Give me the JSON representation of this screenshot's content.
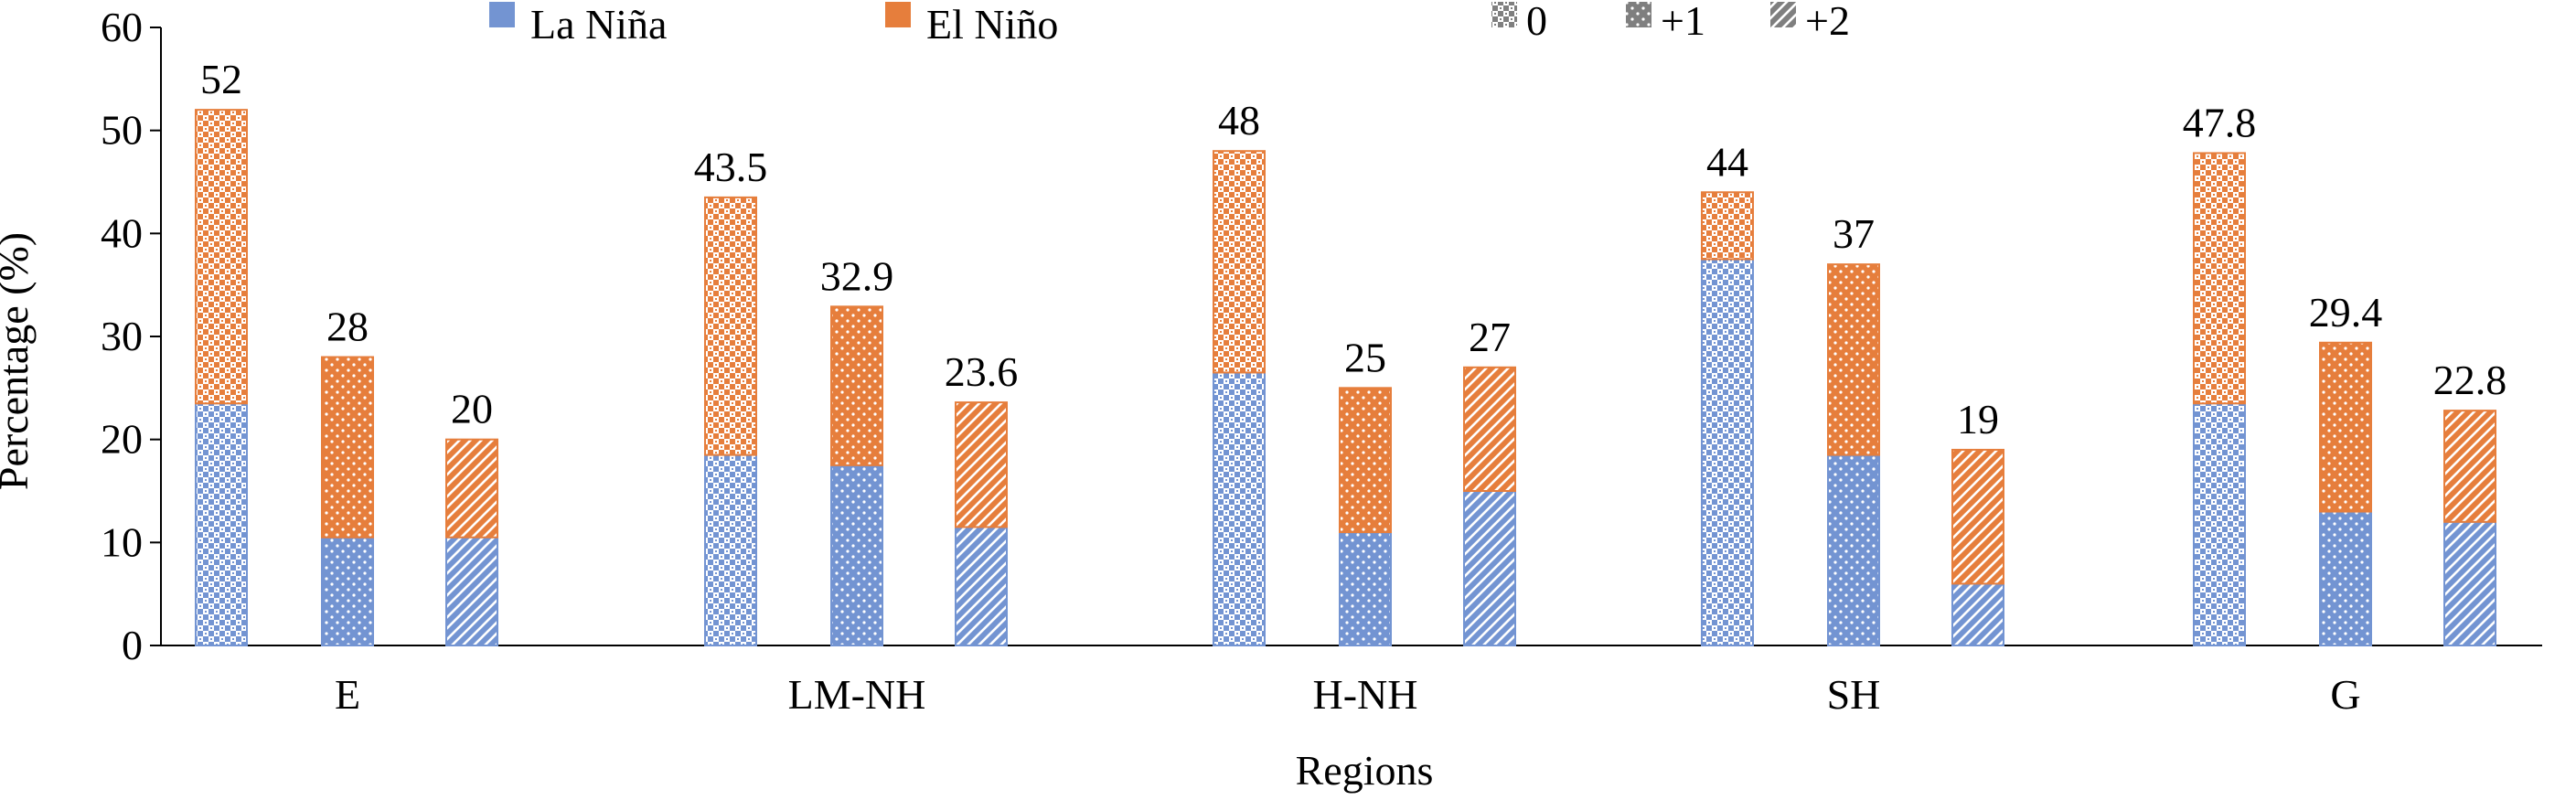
{
  "chart_data": {
    "type": "bar",
    "stacked": true,
    "title": "",
    "xlabel": "Regions",
    "ylabel": "Percentage (%)",
    "ylim": [
      0,
      60
    ],
    "yticks": [
      0,
      10,
      20,
      30,
      40,
      50,
      60
    ],
    "grid": false,
    "legend_position": "top",
    "series_legend": [
      {
        "name": "La Niña",
        "color": "#7394D2"
      },
      {
        "name": "El Niño",
        "color": "#E67E3C"
      }
    ],
    "pattern_legend": [
      {
        "label": "0",
        "pattern": "checker"
      },
      {
        "label": "+1",
        "pattern": "dots"
      },
      {
        "label": "+2",
        "pattern": "diagonal"
      }
    ],
    "groups": [
      {
        "region": "E",
        "bars": [
          {
            "pattern": "0",
            "la_nina": 23.5,
            "el_nino": 28.5,
            "total_label": "52"
          },
          {
            "pattern": "+1",
            "la_nina": 10.5,
            "el_nino": 17.5,
            "total_label": "28"
          },
          {
            "pattern": "+2",
            "la_nina": 10.5,
            "el_nino": 9.5,
            "total_label": "20"
          }
        ]
      },
      {
        "region": "LM-NH",
        "bars": [
          {
            "pattern": "0",
            "la_nina": 18.5,
            "el_nino": 25.0,
            "total_label": "43.5"
          },
          {
            "pattern": "+1",
            "la_nina": 17.5,
            "el_nino": 15.4,
            "total_label": "32.9"
          },
          {
            "pattern": "+2",
            "la_nina": 11.5,
            "el_nino": 12.1,
            "total_label": "23.6"
          }
        ]
      },
      {
        "region": "H-NH",
        "bars": [
          {
            "pattern": "0",
            "la_nina": 26.5,
            "el_nino": 21.5,
            "total_label": "48"
          },
          {
            "pattern": "+1",
            "la_nina": 11.0,
            "el_nino": 14.0,
            "total_label": "25"
          },
          {
            "pattern": "+2",
            "la_nina": 15.0,
            "el_nino": 12.0,
            "total_label": "27"
          }
        ]
      },
      {
        "region": "SH",
        "bars": [
          {
            "pattern": "0",
            "la_nina": 37.5,
            "el_nino": 6.5,
            "total_label": "44"
          },
          {
            "pattern": "+1",
            "la_nina": 18.5,
            "el_nino": 18.5,
            "total_label": "37"
          },
          {
            "pattern": "+2",
            "la_nina": 6.0,
            "el_nino": 13.0,
            "total_label": "19"
          }
        ]
      },
      {
        "region": "G",
        "bars": [
          {
            "pattern": "0",
            "la_nina": 23.5,
            "el_nino": 24.3,
            "total_label": "47.8"
          },
          {
            "pattern": "+1",
            "la_nina": 13.0,
            "el_nino": 16.4,
            "total_label": "29.4"
          },
          {
            "pattern": "+2",
            "la_nina": 12.0,
            "el_nino": 10.8,
            "total_label": "22.8"
          }
        ]
      }
    ]
  }
}
